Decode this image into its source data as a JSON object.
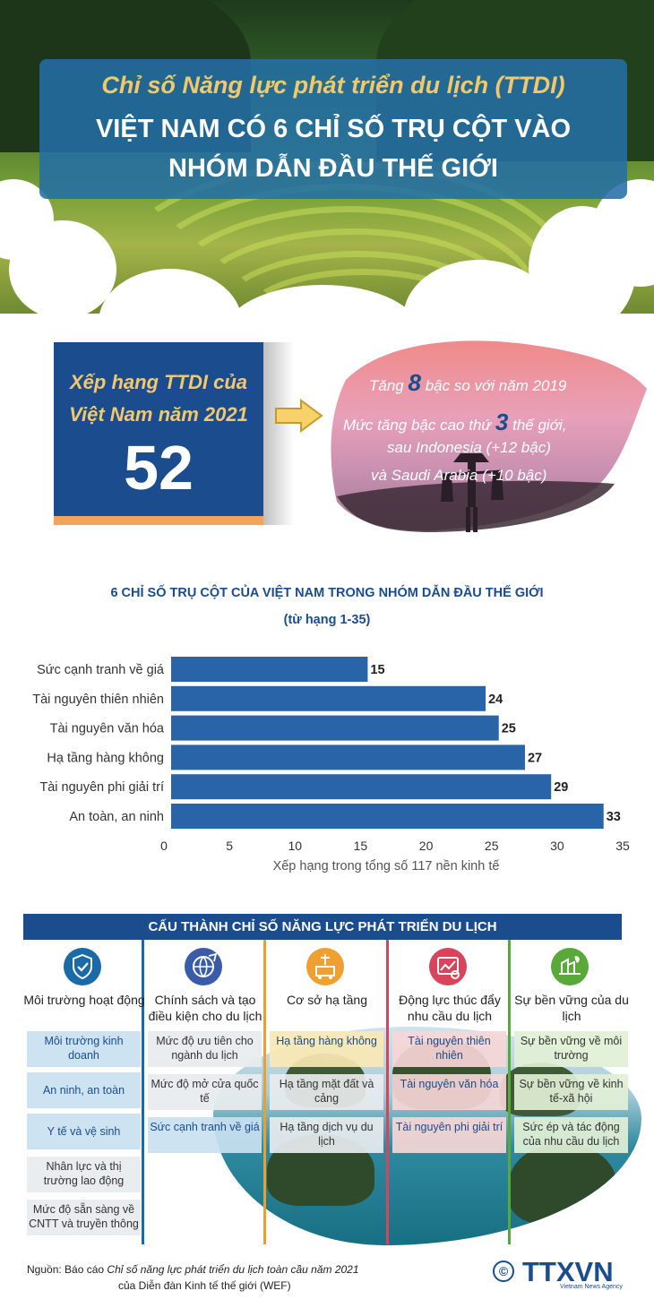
{
  "header": {
    "subtitle": "Chỉ số Năng lực phát triển du lịch (TTDI)",
    "title_line1": "VIỆT NAM CÓ 6 CHỈ SỐ TRỤ CỘT VÀO",
    "title_line2": "NHÓM DẪN ĐẦU THẾ GIỚI"
  },
  "ranking": {
    "label_line1": "Xếp hạng TTDI của",
    "label_line2": "Việt Nam năm 2021",
    "value": "52",
    "note1_pre": "Tăng",
    "note1_num": "8",
    "note1_post": "bậc so với năm 2019",
    "note2_pre": "Mức tăng bậc cao thứ",
    "note2_num": "3",
    "note2_post": "thế giới,",
    "note3": "sau Indonesia (+12 bậc)",
    "note4": "và Saudi Arabia (+10 bậc)"
  },
  "chart": {
    "title": "6 CHỈ SỐ TRỤ CỘT CỦA VIỆT NAM TRONG NHÓM DẪN ĐẦU THẾ GIỚI",
    "subtitle": "(từ hạng 1-35)"
  },
  "chart_data": {
    "type": "bar",
    "orientation": "horizontal",
    "categories": [
      "Sức cạnh tranh về giá",
      "Tài nguyên thiên nhiên",
      "Tài nguyên văn hóa",
      "Hạ tầng hàng không",
      "Tài nguyên phi giải trí",
      "An toàn, an ninh"
    ],
    "values": [
      15,
      24,
      25,
      27,
      29,
      33
    ],
    "xlabel": "Xếp hạng trong tổng số 117 nền kinh tế",
    "ylabel": "",
    "xlim": [
      0,
      35
    ],
    "xticks": [
      0,
      5,
      10,
      15,
      20,
      25,
      30,
      35
    ],
    "bar_color": "#2a64a8",
    "grid": false
  },
  "components": {
    "header": "CẤU THÀNH CHỈ SỐ NĂNG LỰC PHÁT TRIỂN DU LỊCH",
    "columns": [
      {
        "title": "Môi trường hoạt động",
        "icon": "shield-check-icon",
        "color": "#1a6aa8",
        "items": [
          "Môi trường kinh doanh",
          "An ninh, an toàn",
          "Y tế và vệ sinh",
          "Nhân lực và thị trường lao động",
          "Mức độ sẵn sàng về CNTT và truyền thông"
        ]
      },
      {
        "title": "Chính sách và tạo điều kiện cho du lịch",
        "icon": "travel-globe-icon",
        "color": "#3a5ca8",
        "items": [
          "Mức độ ưu tiên cho ngành du lịch",
          "Mức độ mở cửa quốc tế",
          "Sức cạnh tranh về giá"
        ]
      },
      {
        "title": "Cơ sở hạ tầng",
        "icon": "infrastructure-icon",
        "color": "#f0a030",
        "items": [
          "Hạ tầng hàng không",
          "Hạ tầng mặt đất và cảng",
          "Hạ tầng dịch vụ du lịch"
        ]
      },
      {
        "title": "Động lực thúc đẩy nhu cầu du lịch",
        "icon": "demand-drivers-icon",
        "color": "#d8445a",
        "items": [
          "Tài nguyên thiên nhiên",
          "Tài nguyên văn hóa",
          "Tài nguyên phi giải trí"
        ]
      },
      {
        "title": "Sự bền vững của du lịch",
        "icon": "sustainability-icon",
        "color": "#58a83a",
        "items": [
          "Sự bền vững về môi trường",
          "Sự bền vững về kinh tế-xã hội",
          "Sức ép và tác động của nhu cầu du lịch"
        ]
      }
    ]
  },
  "footer": {
    "source_prefix": "Nguồn: Báo cáo",
    "source_italic": "Chỉ số năng lực phát triển du lịch toàn cầu năm 2021",
    "source_line2": "của Diễn đàn Kinh tế thế giới (WEF)",
    "copyright": "©",
    "logo": "TTXVN",
    "logo_tagline": "Vietnam News Agency"
  }
}
